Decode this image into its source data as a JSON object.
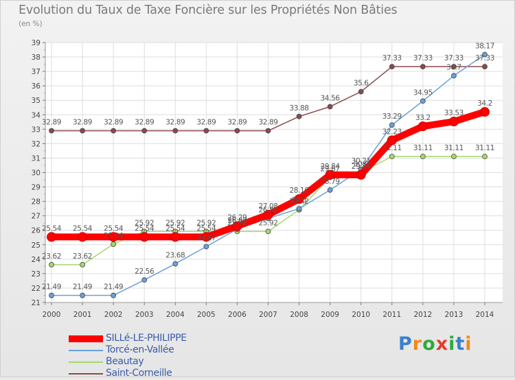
{
  "chart_data": {
    "type": "line",
    "title": "Evolution du Taux de Taxe Foncière sur les Propriétés Non Bâties",
    "ylabel": "(en %)",
    "xlabel": "",
    "ylim": [
      21,
      39
    ],
    "yticks": [
      "21",
      "22",
      "23",
      "24",
      "25",
      "26",
      "27",
      "28",
      "29",
      "30",
      "31",
      "32",
      "33",
      "34",
      "35",
      "36",
      "37",
      "38",
      "39"
    ],
    "categories": [
      "2000",
      "2001",
      "2002",
      "2003",
      "2004",
      "2005",
      "2006",
      "2007",
      "2008",
      "2009",
      "2010",
      "2011",
      "2012",
      "2013",
      "2014"
    ],
    "series": [
      {
        "name": "SILLé-LE-PHILIPPE",
        "color": "#ff0000",
        "values": [
          25.54,
          25.54,
          25.54,
          25.54,
          25.54,
          25.54,
          26.29,
          27.08,
          28.16,
          29.84,
          29.84,
          32.23,
          33.2,
          33.53,
          34.2
        ],
        "labels": [
          "25.54",
          "25.54",
          "25.54",
          "25.54",
          "25.54",
          "25.54",
          "26.29",
          "27.08",
          "28.16",
          "29.84",
          "29.84",
          "32.23",
          "33.2",
          "33.53",
          "34.2"
        ]
      },
      {
        "name": "Torcé-en-Vallée",
        "color": "#6aa0d8",
        "values": [
          21.49,
          21.49,
          21.49,
          22.56,
          23.68,
          24.87,
          26.08,
          26.82,
          27.5,
          28.79,
          30.21,
          33.29,
          34.95,
          36.7,
          38.17
        ],
        "labels": [
          "21.49",
          "21.49",
          "21.49",
          "22.56",
          "23.68",
          "24.87",
          "26.08",
          "26.82",
          "27.5",
          "28.79",
          "30.21",
          "33.29",
          "34.95",
          "36.7",
          "38.17"
        ]
      },
      {
        "name": "Beautay",
        "color": "#a5d86a",
        "values": [
          23.62,
          23.62,
          25.04,
          25.92,
          25.92,
          25.92,
          25.92,
          25.92,
          27.42,
          29.67,
          30.0,
          31.11,
          31.11,
          31.11,
          31.11
        ],
        "labels": [
          "23.62",
          "23.62",
          "25.04",
          "25.92",
          "25.92",
          "25.92",
          "25.92",
          "25.92",
          "27.42",
          "29.67",
          "30.0",
          "31.11",
          "31.11",
          "31.11",
          "31.11"
        ]
      },
      {
        "name": "Saint-Corneille",
        "color": "#8b4a4a",
        "values": [
          32.89,
          32.89,
          32.89,
          32.89,
          32.89,
          32.89,
          32.89,
          32.89,
          33.88,
          34.56,
          35.6,
          37.33,
          37.33,
          37.33,
          37.33
        ],
        "labels": [
          "32.89",
          "32.89",
          "32.89",
          "32.89",
          "32.89",
          "32.89",
          "32.89",
          "32.89",
          "33.88",
          "34.56",
          "35.6",
          "37.33",
          "37.33",
          "37.33",
          "37.33"
        ]
      }
    ]
  },
  "logo": {
    "letters": [
      "P",
      "r",
      "o",
      "x",
      "i",
      "t",
      "i"
    ],
    "colors": [
      "#3a7fd0",
      "#f08a1c",
      "#2eaa3c",
      "#e63a2e",
      "#2eaa3c",
      "#3a7fd0",
      "#f08a1c"
    ]
  }
}
